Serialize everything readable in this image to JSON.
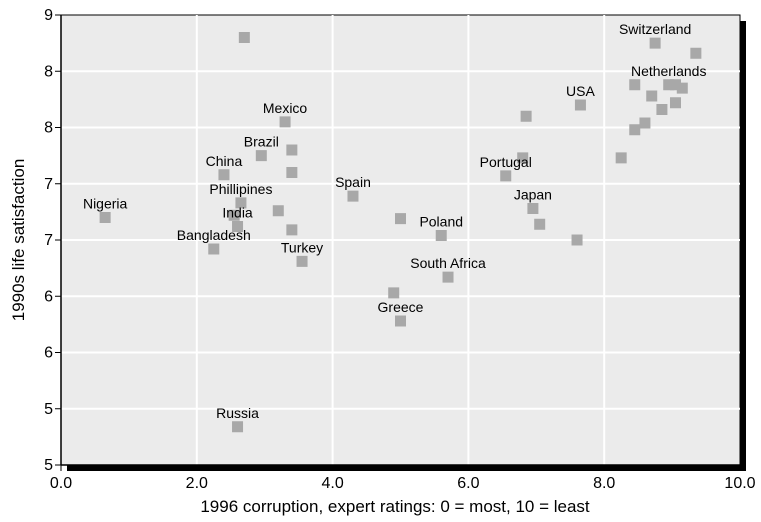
{
  "chart_data": {
    "type": "scatter",
    "title": "",
    "xlabel": "1996 corruption, expert ratings: 0 = most, 10 = least",
    "ylabel": "1990s life satisfaction",
    "xlim": [
      0,
      10
    ],
    "ylim": [
      5,
      9
    ],
    "grid": true,
    "x_ticks": [
      {
        "value": 0,
        "label": "0.0"
      },
      {
        "value": 2,
        "label": "2.0"
      },
      {
        "value": 4,
        "label": "4.0"
      },
      {
        "value": 6,
        "label": "6.0"
      },
      {
        "value": 8,
        "label": "8.0"
      },
      {
        "value": 10,
        "label": "10.0"
      }
    ],
    "y_ticks": [
      {
        "value": 5,
        "label": "5"
      },
      {
        "value": 5.5,
        "label": "5"
      },
      {
        "value": 6,
        "label": "6"
      },
      {
        "value": 6.5,
        "label": "6"
      },
      {
        "value": 7,
        "label": "7"
      },
      {
        "value": 7.5,
        "label": "7"
      },
      {
        "value": 8,
        "label": "8"
      },
      {
        "value": 8.5,
        "label": "8"
      },
      {
        "value": 9,
        "label": "9"
      }
    ],
    "marker_color": "#a8a8a8",
    "panel_color": "#ebebeb",
    "points": [
      {
        "x": 0.65,
        "y": 7.2,
        "label": "Nigeria"
      },
      {
        "x": 2.7,
        "y": 8.8,
        "label": ""
      },
      {
        "x": 3.3,
        "y": 8.05,
        "label": "Mexico"
      },
      {
        "x": 2.95,
        "y": 7.75,
        "label": "Brazil"
      },
      {
        "x": 3.4,
        "y": 7.8,
        "label": ""
      },
      {
        "x": 3.4,
        "y": 7.6,
        "label": ""
      },
      {
        "x": 2.4,
        "y": 7.58,
        "label": "China"
      },
      {
        "x": 2.65,
        "y": 7.33,
        "label": "Phillipines"
      },
      {
        "x": 2.55,
        "y": 7.22,
        "label": ""
      },
      {
        "x": 2.6,
        "y": 7.12,
        "label": "India"
      },
      {
        "x": 3.2,
        "y": 7.26,
        "label": ""
      },
      {
        "x": 2.25,
        "y": 6.92,
        "label": "Bangladesh"
      },
      {
        "x": 3.4,
        "y": 7.09,
        "label": ""
      },
      {
        "x": 3.55,
        "y": 6.81,
        "label": "Turkey"
      },
      {
        "x": 4.3,
        "y": 7.39,
        "label": "Spain"
      },
      {
        "x": 5.0,
        "y": 7.19,
        "label": ""
      },
      {
        "x": 5.6,
        "y": 7.04,
        "label": "Poland"
      },
      {
        "x": 5.7,
        "y": 6.67,
        "label": "South Africa"
      },
      {
        "x": 4.9,
        "y": 6.53,
        "label": ""
      },
      {
        "x": 5.0,
        "y": 6.28,
        "label": "Greece"
      },
      {
        "x": 2.6,
        "y": 5.34,
        "label": "Russia"
      },
      {
        "x": 6.55,
        "y": 7.57,
        "label": "Portugal"
      },
      {
        "x": 6.8,
        "y": 7.73,
        "label": ""
      },
      {
        "x": 6.85,
        "y": 8.1,
        "label": ""
      },
      {
        "x": 6.95,
        "y": 7.28,
        "label": "Japan"
      },
      {
        "x": 7.05,
        "y": 7.14,
        "label": ""
      },
      {
        "x": 7.6,
        "y": 7.0,
        "label": ""
      },
      {
        "x": 7.65,
        "y": 8.2,
        "label": "USA"
      },
      {
        "x": 8.25,
        "y": 7.73,
        "label": ""
      },
      {
        "x": 8.45,
        "y": 7.98,
        "label": ""
      },
      {
        "x": 8.6,
        "y": 8.04,
        "label": ""
      },
      {
        "x": 8.45,
        "y": 8.38,
        "label": ""
      },
      {
        "x": 8.7,
        "y": 8.28,
        "label": ""
      },
      {
        "x": 8.85,
        "y": 8.16,
        "label": ""
      },
      {
        "x": 9.05,
        "y": 8.22,
        "label": ""
      },
      {
        "x": 9.05,
        "y": 8.38,
        "label": ""
      },
      {
        "x": 8.95,
        "y": 8.38,
        "label": "Netherlands"
      },
      {
        "x": 9.15,
        "y": 8.35,
        "label": ""
      },
      {
        "x": 8.75,
        "y": 8.75,
        "label": "Switzerland"
      },
      {
        "x": 9.35,
        "y": 8.66,
        "label": ""
      }
    ]
  }
}
